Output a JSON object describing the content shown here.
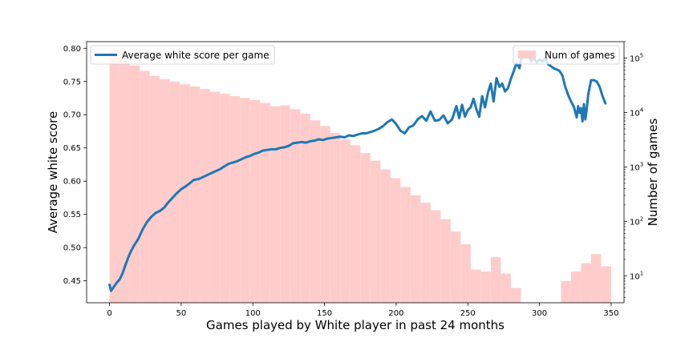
{
  "chart_data": {
    "type": "line",
    "title": "",
    "xlabel": "Games played by White player in past 24 months",
    "ylabel_left": "Average white score",
    "ylabel_right": "Number of games",
    "xlim": [
      -16,
      359
    ],
    "ylim_left": [
      0.417,
      0.81
    ],
    "ylim_right": [
      3.2,
      200000
    ],
    "y_right_scale": "log",
    "x_ticks": [
      0,
      50,
      100,
      150,
      200,
      250,
      300,
      350
    ],
    "y_left_ticks": [
      "0.45",
      "0.50",
      "0.55",
      "0.60",
      "0.65",
      "0.70",
      "0.75",
      "0.80"
    ],
    "y_right_ticks": [
      {
        "value": 10,
        "base": "10",
        "exp": "1"
      },
      {
        "value": 100,
        "base": "10",
        "exp": "2"
      },
      {
        "value": 1000,
        "base": "10",
        "exp": "3"
      },
      {
        "value": 10000,
        "base": "10",
        "exp": "4"
      },
      {
        "value": 100000,
        "base": "10",
        "exp": "5"
      }
    ],
    "grid": false,
    "legend_left": {
      "position": "upper left",
      "label": "Average white score per game",
      "color": "#1f77b4"
    },
    "legend_right": {
      "position": "upper right",
      "label": "Num of games",
      "color": "#ffcccc"
    },
    "series": [
      {
        "name": "Average white score per game",
        "axis": "left",
        "color": "#1f77b4",
        "x": [
          0,
          1,
          3,
          5,
          7,
          9,
          11,
          13,
          15,
          17,
          20,
          23,
          26,
          29,
          32,
          35,
          38,
          41,
          44,
          47,
          50,
          53,
          56,
          59,
          62,
          65,
          68,
          71,
          74,
          77,
          80,
          83,
          86,
          89,
          92,
          95,
          98,
          101,
          104,
          107,
          110,
          113,
          116,
          119,
          122,
          125,
          128,
          131,
          134,
          137,
          140,
          143,
          146,
          149,
          152,
          155,
          158,
          161,
          164,
          167,
          170,
          173,
          176,
          179,
          182,
          185,
          188,
          191,
          194,
          197,
          200,
          203,
          206,
          209,
          212,
          215,
          218,
          221,
          224,
          227,
          230,
          233,
          236,
          239,
          242,
          244,
          246,
          248,
          250,
          252,
          254,
          256,
          258,
          260,
          262,
          264,
          266,
          268,
          270,
          272,
          274,
          276,
          278,
          280,
          282,
          284,
          286,
          288,
          290,
          292,
          294,
          296,
          298,
          300,
          302,
          304,
          306,
          308,
          310,
          312,
          314,
          316,
          318,
          320,
          322,
          324,
          326,
          327,
          328,
          329,
          330,
          331,
          332,
          333,
          334,
          336,
          338,
          340,
          342,
          344,
          346
        ],
        "y": [
          0.444,
          0.435,
          0.441,
          0.447,
          0.452,
          0.461,
          0.473,
          0.485,
          0.495,
          0.503,
          0.513,
          0.527,
          0.538,
          0.546,
          0.552,
          0.555,
          0.56,
          0.568,
          0.575,
          0.582,
          0.588,
          0.592,
          0.597,
          0.602,
          0.603,
          0.606,
          0.609,
          0.612,
          0.615,
          0.618,
          0.622,
          0.626,
          0.628,
          0.63,
          0.633,
          0.636,
          0.638,
          0.641,
          0.643,
          0.646,
          0.647,
          0.648,
          0.648,
          0.65,
          0.651,
          0.653,
          0.657,
          0.658,
          0.659,
          0.658,
          0.66,
          0.661,
          0.663,
          0.662,
          0.664,
          0.665,
          0.666,
          0.667,
          0.666,
          0.669,
          0.668,
          0.67,
          0.672,
          0.672,
          0.674,
          0.676,
          0.679,
          0.683,
          0.689,
          0.693,
          0.686,
          0.676,
          0.672,
          0.681,
          0.684,
          0.693,
          0.698,
          0.691,
          0.705,
          0.691,
          0.692,
          0.699,
          0.687,
          0.693,
          0.713,
          0.695,
          0.715,
          0.697,
          0.707,
          0.711,
          0.724,
          0.708,
          0.697,
          0.728,
          0.711,
          0.733,
          0.747,
          0.72,
          0.755,
          0.742,
          0.747,
          0.735,
          0.74,
          0.754,
          0.765,
          0.778,
          0.77,
          0.793,
          0.788,
          0.792,
          0.78,
          0.786,
          0.779,
          0.783,
          0.78,
          0.785,
          0.776,
          0.773,
          0.77,
          0.768,
          0.766,
          0.759,
          0.742,
          0.73,
          0.72,
          0.712,
          0.696,
          0.713,
          0.703,
          0.71,
          0.69,
          0.716,
          0.693,
          0.709,
          0.73,
          0.752,
          0.752,
          0.75,
          0.742,
          0.728,
          0.717
        ]
      },
      {
        "name": "Num of games",
        "axis": "right",
        "type": "histogram",
        "color": "#ffcccc",
        "bin_edges": [
          0,
          7,
          14,
          21,
          28,
          35,
          42,
          49,
          56,
          63,
          70,
          77,
          84,
          91,
          98,
          105,
          112,
          119,
          126,
          133,
          140,
          147,
          154,
          161,
          168,
          175,
          182,
          189,
          196,
          203,
          210,
          217,
          224,
          231,
          238,
          245,
          252,
          259,
          266,
          273,
          280,
          287,
          294,
          301,
          308,
          315,
          322,
          329,
          336,
          343,
          350
        ],
        "counts": [
          142000,
          98000,
          73000,
          58000,
          47000,
          41000,
          37000,
          33000,
          30000,
          27000,
          24000,
          22000,
          20000,
          18500,
          17000,
          15000,
          13000,
          13500,
          11500,
          9500,
          7200,
          5600,
          4200,
          3200,
          2500,
          1800,
          1300,
          900,
          620,
          430,
          300,
          220,
          160,
          110,
          65,
          38,
          13,
          12,
          22,
          11,
          6,
          2,
          0,
          0,
          3,
          8,
          12,
          17,
          25,
          15
        ]
      }
    ]
  }
}
